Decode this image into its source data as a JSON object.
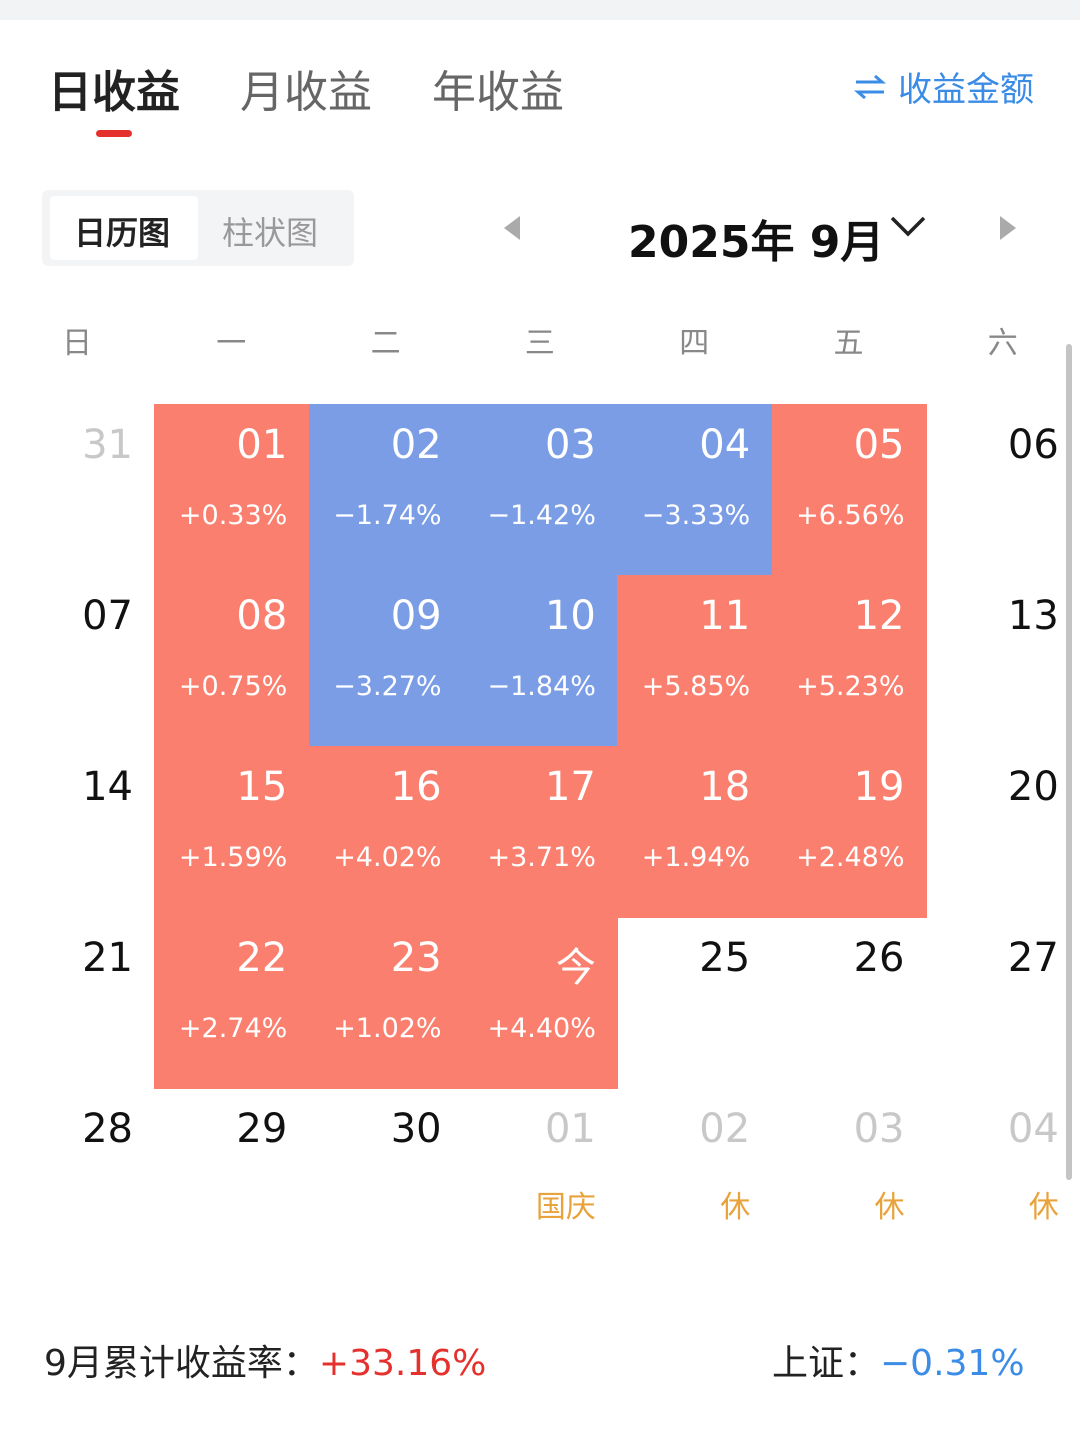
{
  "tabs": [
    "日收益",
    "月收益",
    "年收益"
  ],
  "amount_toggle": "收益金额",
  "view_tabs": [
    "日历图",
    "柱状图"
  ],
  "month": "2025年 9月",
  "weekdays": [
    "日",
    "一",
    "二",
    "三",
    "四",
    "五",
    "六"
  ],
  "weeks": [
    [
      {
        "day": "31",
        "muted": true
      },
      {
        "day": "01",
        "change": "+0.33%"
      },
      {
        "day": "02",
        "change": "−1.74%"
      },
      {
        "day": "03",
        "change": "−1.42%"
      },
      {
        "day": "04",
        "change": "−3.33%"
      },
      {
        "day": "05",
        "change": "+6.56%"
      },
      {
        "day": "06"
      }
    ],
    [
      {
        "day": "07"
      },
      {
        "day": "08",
        "change": "+0.75%"
      },
      {
        "day": "09",
        "change": "−3.27%"
      },
      {
        "day": "10",
        "change": "−1.84%"
      },
      {
        "day": "11",
        "change": "+5.85%"
      },
      {
        "day": "12",
        "change": "+5.23%"
      },
      {
        "day": "13"
      }
    ],
    [
      {
        "day": "14"
      },
      {
        "day": "15",
        "change": "+1.59%"
      },
      {
        "day": "16",
        "change": "+4.02%"
      },
      {
        "day": "17",
        "change": "+3.71%"
      },
      {
        "day": "18",
        "change": "+1.94%"
      },
      {
        "day": "19",
        "change": "+2.48%"
      },
      {
        "day": "20"
      }
    ],
    [
      {
        "day": "21"
      },
      {
        "day": "22",
        "change": "+2.74%"
      },
      {
        "day": "23",
        "change": "+1.02%"
      },
      {
        "day": "今",
        "change": "+4.40%"
      },
      {
        "day": "25"
      },
      {
        "day": "26"
      },
      {
        "day": "27"
      }
    ],
    [
      {
        "day": "28"
      },
      {
        "day": "29"
      },
      {
        "day": "30"
      },
      {
        "day": "01",
        "muted": true,
        "note": "国庆"
      },
      {
        "day": "02",
        "muted": true,
        "note": "休"
      },
      {
        "day": "03",
        "muted": true,
        "note": "休"
      },
      {
        "day": "04",
        "muted": true,
        "note": "休"
      }
    ]
  ],
  "summary": {
    "label": "9月累计收益率：",
    "value": "+33.16%",
    "index_label": "上证：",
    "index_value": "−0.31%"
  }
}
